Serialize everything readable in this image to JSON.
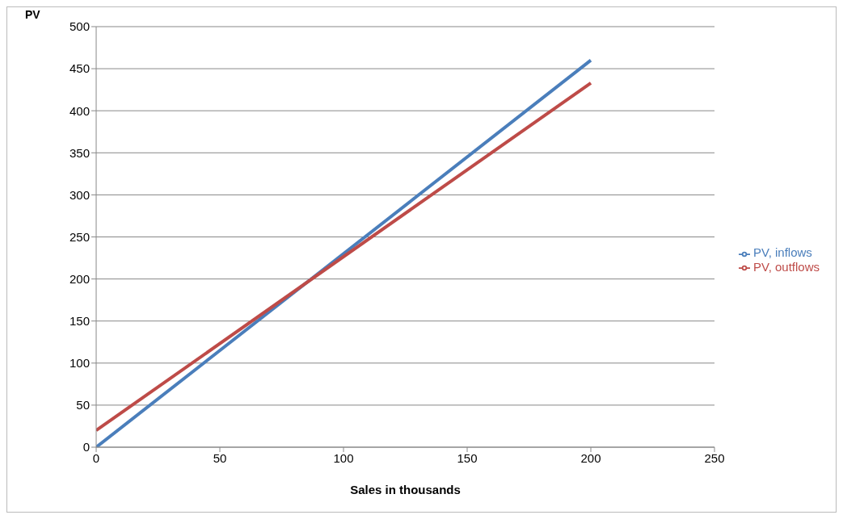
{
  "chart_data": {
    "type": "line",
    "xlabel": "Sales in thousands",
    "ylabel": "PV",
    "x": [
      0,
      200
    ],
    "series": [
      {
        "name": "PV, inflows",
        "color": "#4a7ebb",
        "values": [
          0,
          460
        ]
      },
      {
        "name": "PV, outflows",
        "color": "#be4b48",
        "values": [
          20,
          433
        ]
      }
    ],
    "xlim": [
      0,
      250
    ],
    "xticks": [
      0,
      50,
      100,
      150,
      200,
      250
    ],
    "ylim": [
      0,
      500
    ],
    "yticks": [
      0,
      50,
      100,
      150,
      200,
      250,
      300,
      350,
      400,
      450,
      500
    ],
    "grid": "y",
    "legend": "right",
    "marker": "none",
    "line_style": "solid"
  }
}
